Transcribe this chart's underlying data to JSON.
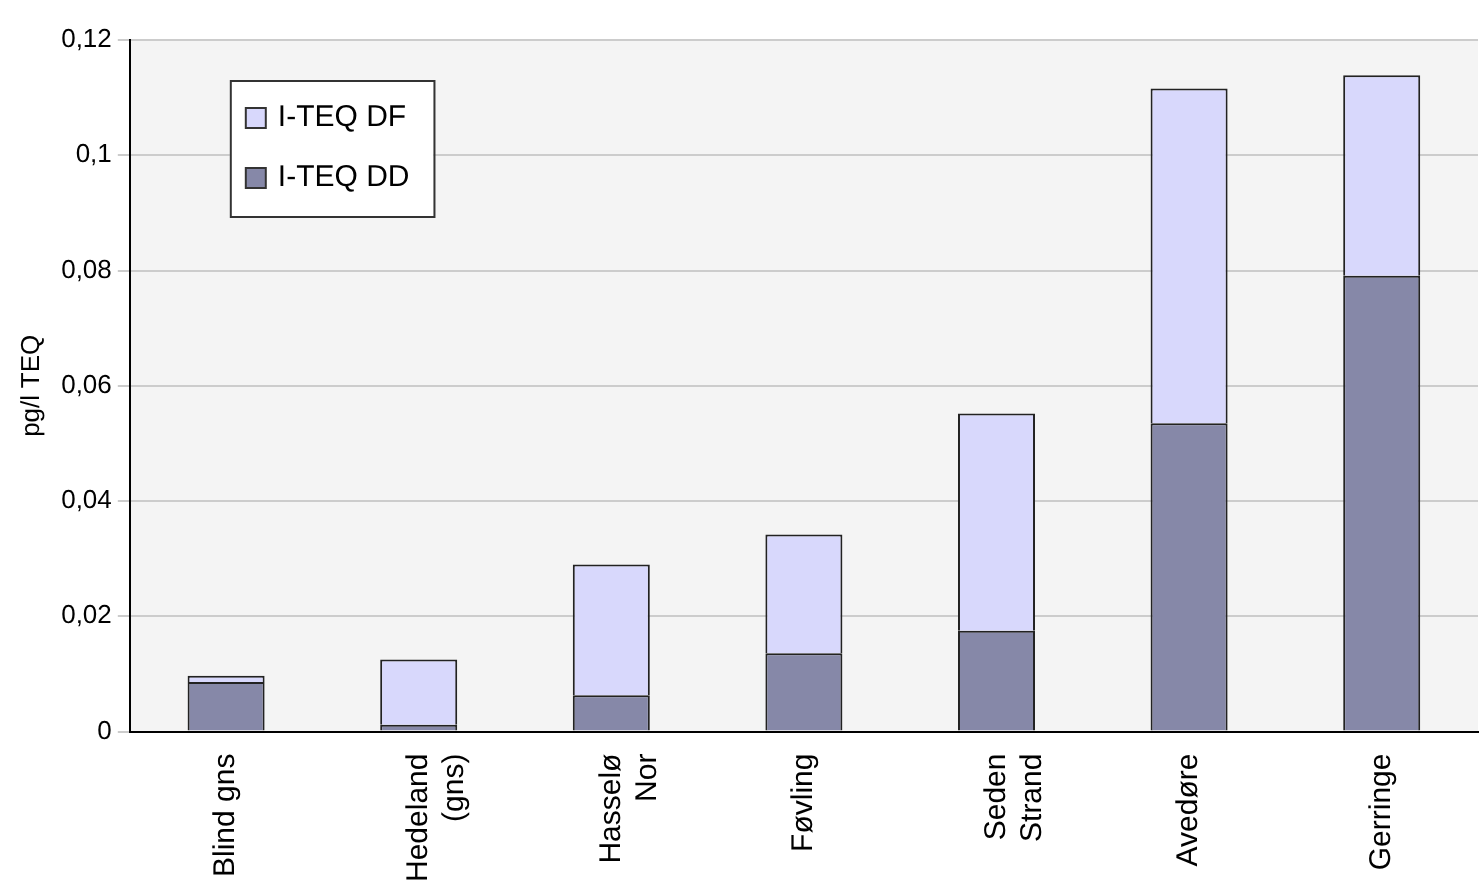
{
  "chart_data": {
    "type": "bar",
    "ylabel": "pg/l TEQ",
    "stacked": true,
    "categories": [
      "Blind gns",
      "Hedeland\n(gns)",
      "Hasselø\nNor",
      "Føvling",
      "Seden\nStrand",
      "Avedøre",
      "Gerringe"
    ],
    "series": [
      {
        "name": "I-TEQ DD",
        "color": "#8688a8",
        "values": [
          0.0086,
          0.0012,
          0.0063,
          0.0136,
          0.0175,
          0.0535,
          0.0791
        ]
      },
      {
        "name": "I-TEQ DF",
        "color": "#d8d8fc",
        "values": [
          0.0011,
          0.0113,
          0.0227,
          0.0206,
          0.0377,
          0.0581,
          0.0348
        ]
      }
    ],
    "ylim": [
      0,
      0.12
    ],
    "yticks": [
      0,
      {
        "value": 0.02,
        "label": "0,02"
      },
      {
        "value": 0.04,
        "label": "0,04"
      },
      {
        "value": 0.06,
        "label": "0,06"
      },
      {
        "value": 0.08,
        "label": "0,08"
      },
      {
        "value": 0.1,
        "label": "0,1"
      },
      {
        "value": 0.12,
        "label": "0,12"
      }
    ],
    "grid": "y",
    "legend": "top left"
  }
}
